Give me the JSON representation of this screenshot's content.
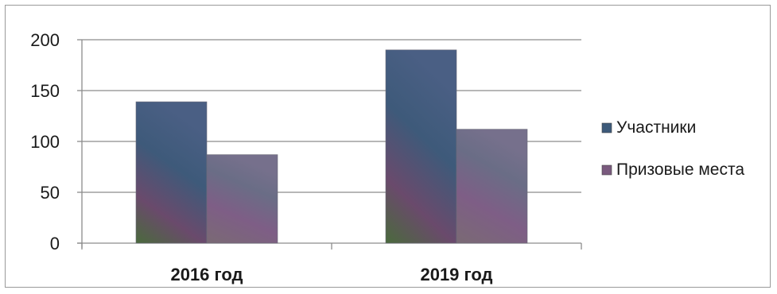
{
  "chart_data": {
    "type": "bar",
    "categories": [
      "2016 год",
      "2019 год"
    ],
    "series": [
      {
        "name": "Участники",
        "values": [
          139,
          190
        ],
        "color": "#3d5a7a"
      },
      {
        "name": "Призовые места",
        "values": [
          87,
          112
        ],
        "color": "#7a5a7e"
      }
    ],
    "ylim": [
      0,
      200
    ],
    "yticks": [
      0,
      50,
      100,
      150,
      200
    ],
    "grid": true,
    "legend": "right",
    "title": "",
    "xlabel": "",
    "ylabel": ""
  }
}
